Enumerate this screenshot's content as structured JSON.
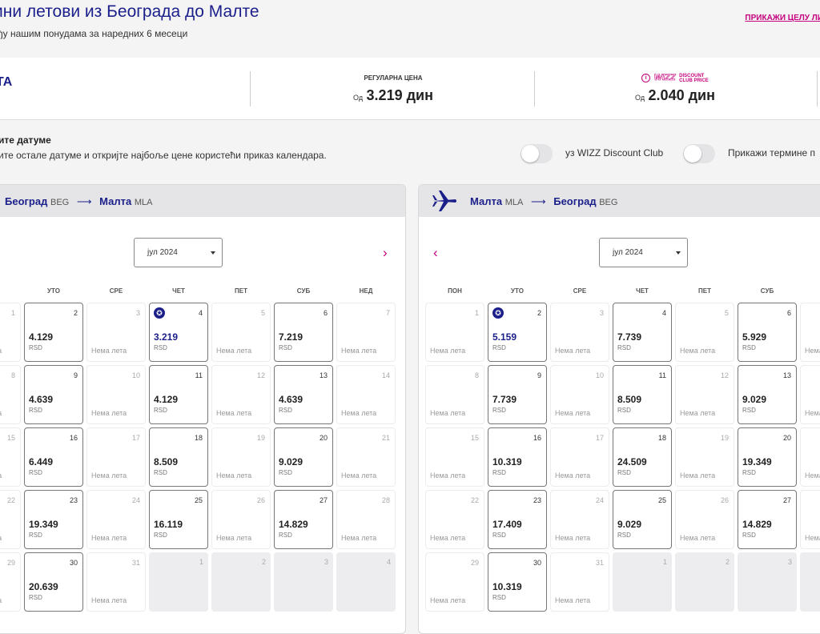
{
  "header": {
    "title": "ини летови из Београда до Малте",
    "subtitle": "ђу нашим понудама за наредних 6 месеци",
    "show_list": "ПРИКАЖИ ЦЕЛУ ЛИ"
  },
  "price_bar": {
    "destination": "ТА",
    "regular_label": "РЕГУЛАРНА ЦЕНА",
    "from_label": "Од",
    "regular_price": "3.219 дин",
    "info_icon": "i",
    "discount_brand": "WIZZ",
    "discount_line1": "DISCOUNT",
    "discount_line2": "CLUB PRICE",
    "discount_price": "2.040 дин"
  },
  "choose": {
    "heading": "ите датуме",
    "subtext": "ите остале датуме и откријте најбоље цене користећи приказ календара."
  },
  "toggles": [
    {
      "label": "уз WIZZ Discount Club"
    },
    {
      "label": "Прикажи термине п"
    }
  ],
  "no_flights": "Нема лета",
  "currency": "RSD",
  "outbound": {
    "from_city": "Београд",
    "from_code": "BEG",
    "arrow": "⟶",
    "to_city": "Малта",
    "to_code": "MLA",
    "month": "јул 2024",
    "next_arrow": "›",
    "day_names": [
      "",
      "УТО",
      "СРЕ",
      "ЧЕТ",
      "ПЕТ",
      "СУБ",
      "НЕД"
    ],
    "weeks": [
      [
        {
          "d": "1",
          "s": "none"
        },
        {
          "d": "2",
          "p": "4.129"
        },
        {
          "d": "3",
          "s": "none"
        },
        {
          "d": "4",
          "p": "3.219",
          "star": true
        },
        {
          "d": "5",
          "s": "none"
        },
        {
          "d": "6",
          "p": "7.219"
        },
        {
          "d": "7",
          "s": "none"
        }
      ],
      [
        {
          "d": "8",
          "s": "none"
        },
        {
          "d": "9",
          "p": "4.639"
        },
        {
          "d": "10",
          "s": "none"
        },
        {
          "d": "11",
          "p": "4.129"
        },
        {
          "d": "12",
          "s": "none"
        },
        {
          "d": "13",
          "p": "4.639"
        },
        {
          "d": "14",
          "s": "none"
        }
      ],
      [
        {
          "d": "15",
          "s": "none"
        },
        {
          "d": "16",
          "p": "6.449"
        },
        {
          "d": "17",
          "s": "none"
        },
        {
          "d": "18",
          "p": "8.509"
        },
        {
          "d": "19",
          "s": "none"
        },
        {
          "d": "20",
          "p": "9.029"
        },
        {
          "d": "21",
          "s": "none"
        }
      ],
      [
        {
          "d": "22",
          "s": "none"
        },
        {
          "d": "23",
          "p": "19.349"
        },
        {
          "d": "24",
          "s": "none"
        },
        {
          "d": "25",
          "p": "16.119"
        },
        {
          "d": "26",
          "s": "none"
        },
        {
          "d": "27",
          "p": "14.829"
        },
        {
          "d": "28",
          "s": "none"
        }
      ],
      [
        {
          "d": "29",
          "s": "none"
        },
        {
          "d": "30",
          "p": "20.639"
        },
        {
          "d": "31",
          "s": "none"
        },
        {
          "d": "1",
          "s": "next"
        },
        {
          "d": "2",
          "s": "next"
        },
        {
          "d": "3",
          "s": "next"
        },
        {
          "d": "4",
          "s": "next"
        }
      ]
    ]
  },
  "return": {
    "from_city": "Малта",
    "from_code": "MLA",
    "arrow": "⟶",
    "to_city": "Београд",
    "to_code": "BEG",
    "month": "јул 2024",
    "prev_arrow": "‹",
    "day_names": [
      "ПОН",
      "УТО",
      "СРЕ",
      "ЧЕТ",
      "ПЕТ",
      "СУБ",
      ""
    ],
    "weeks": [
      [
        {
          "d": "1",
          "s": "none"
        },
        {
          "d": "2",
          "p": "5.159",
          "star": true
        },
        {
          "d": "3",
          "s": "none"
        },
        {
          "d": "4",
          "p": "7.739"
        },
        {
          "d": "5",
          "s": "none"
        },
        {
          "d": "6",
          "p": "5.929"
        },
        {
          "d": "7",
          "s": "none"
        }
      ],
      [
        {
          "d": "8",
          "s": "none"
        },
        {
          "d": "9",
          "p": "7.739"
        },
        {
          "d": "10",
          "s": "none"
        },
        {
          "d": "11",
          "p": "8.509"
        },
        {
          "d": "12",
          "s": "none"
        },
        {
          "d": "13",
          "p": "9.029"
        },
        {
          "d": "14",
          "s": "none"
        }
      ],
      [
        {
          "d": "15",
          "s": "none"
        },
        {
          "d": "16",
          "p": "10.319"
        },
        {
          "d": "17",
          "s": "none"
        },
        {
          "d": "18",
          "p": "24.509"
        },
        {
          "d": "19",
          "s": "none"
        },
        {
          "d": "20",
          "p": "19.349"
        },
        {
          "d": "21",
          "s": "none"
        }
      ],
      [
        {
          "d": "22",
          "s": "none"
        },
        {
          "d": "23",
          "p": "17.409"
        },
        {
          "d": "24",
          "s": "none"
        },
        {
          "d": "25",
          "p": "9.029"
        },
        {
          "d": "26",
          "s": "none"
        },
        {
          "d": "27",
          "p": "14.829"
        },
        {
          "d": "28",
          "s": "none"
        }
      ],
      [
        {
          "d": "29",
          "s": "none"
        },
        {
          "d": "30",
          "p": "10.319"
        },
        {
          "d": "31",
          "s": "none"
        },
        {
          "d": "1",
          "s": "next"
        },
        {
          "d": "2",
          "s": "next"
        },
        {
          "d": "3",
          "s": "next"
        },
        {
          "d": "4",
          "s": "next"
        }
      ]
    ]
  },
  "icons": {
    "plane": "plane-icon",
    "star": "star-icon",
    "info": "info-icon"
  },
  "colors": {
    "brand_blue": "#1b1f8a",
    "brand_magenta": "#c6007e"
  }
}
